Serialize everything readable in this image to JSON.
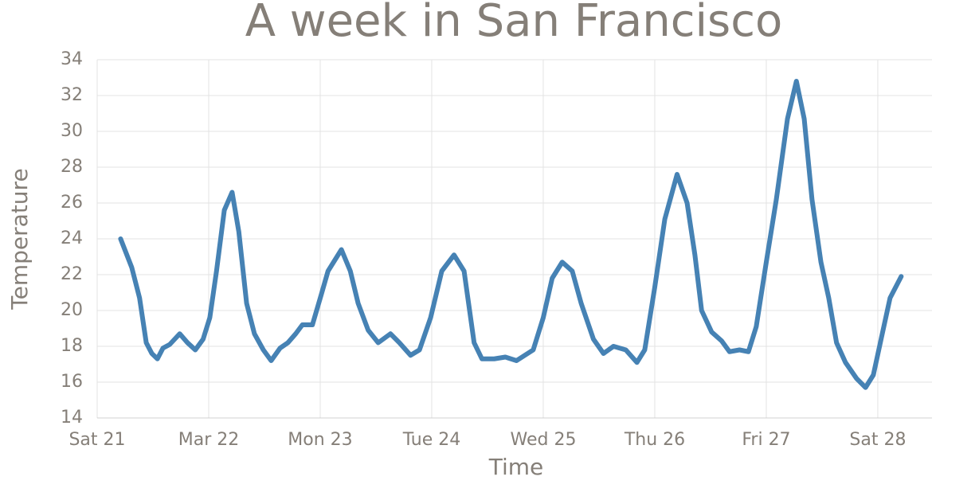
{
  "chart_data": {
    "type": "line",
    "title": "A week in San Francisco",
    "xlabel": "Time",
    "ylabel": "Temperature",
    "xlim": [
      0,
      7.486
    ],
    "ylim": [
      14,
      34
    ],
    "xticks": [
      {
        "value": 0,
        "label": "Sat 21"
      },
      {
        "value": 1,
        "label": "Mar 22"
      },
      {
        "value": 2,
        "label": "Mon 23"
      },
      {
        "value": 3,
        "label": "Tue 24"
      },
      {
        "value": 4,
        "label": "Wed 25"
      },
      {
        "value": 5,
        "label": "Thu 26"
      },
      {
        "value": 6,
        "label": "Fri 27"
      },
      {
        "value": 7,
        "label": "Sat 28"
      }
    ],
    "yticks": [
      14,
      16,
      18,
      20,
      22,
      24,
      26,
      28,
      30,
      32,
      34
    ],
    "grid": true,
    "series": [
      {
        "color": "#4682b4",
        "x": [
          0.21,
          0.31,
          0.38,
          0.44,
          0.49,
          0.54,
          0.59,
          0.65,
          0.74,
          0.81,
          0.88,
          0.95,
          1.01,
          1.07,
          1.14,
          1.21,
          1.27,
          1.34,
          1.41,
          1.49,
          1.56,
          1.64,
          1.71,
          1.78,
          1.84,
          1.93,
          2.01,
          2.07,
          2.19,
          2.27,
          2.34,
          2.43,
          2.52,
          2.63,
          2.71,
          2.81,
          2.89,
          2.99,
          3.09,
          3.2,
          3.29,
          3.38,
          3.45,
          3.56,
          3.66,
          3.76,
          3.86,
          3.91,
          4.0,
          4.08,
          4.17,
          4.26,
          4.34,
          4.45,
          4.54,
          4.63,
          4.74,
          4.84,
          4.91,
          5.0,
          5.09,
          5.2,
          5.29,
          5.36,
          5.42,
          5.51,
          5.6,
          5.67,
          5.76,
          5.84,
          5.91,
          6.0,
          6.09,
          6.19,
          6.27,
          6.34,
          6.41,
          6.49,
          6.56,
          6.63,
          6.71,
          6.81,
          6.89,
          6.96,
          7.04,
          7.11,
          7.21
        ],
        "values": [
          24.0,
          22.4,
          20.7,
          18.2,
          17.6,
          17.3,
          17.9,
          18.1,
          18.7,
          18.2,
          17.8,
          18.4,
          19.6,
          22.2,
          25.6,
          26.6,
          24.4,
          20.4,
          18.7,
          17.8,
          17.2,
          17.9,
          18.2,
          18.7,
          19.2,
          19.2,
          20.9,
          22.2,
          23.4,
          22.2,
          20.4,
          18.9,
          18.2,
          18.7,
          18.2,
          17.5,
          17.8,
          19.6,
          22.2,
          23.1,
          22.2,
          18.2,
          17.3,
          17.3,
          17.4,
          17.2,
          17.6,
          17.8,
          19.6,
          21.8,
          22.7,
          22.2,
          20.4,
          18.4,
          17.6,
          18.0,
          17.8,
          17.1,
          17.8,
          21.3,
          25.1,
          27.6,
          26.0,
          23.1,
          20.0,
          18.8,
          18.3,
          17.7,
          17.8,
          17.7,
          19.1,
          22.7,
          26.2,
          30.7,
          32.8,
          30.7,
          26.2,
          22.7,
          20.7,
          18.2,
          17.1,
          16.2,
          15.7,
          16.4,
          18.7,
          20.7,
          21.9
        ]
      }
    ]
  }
}
